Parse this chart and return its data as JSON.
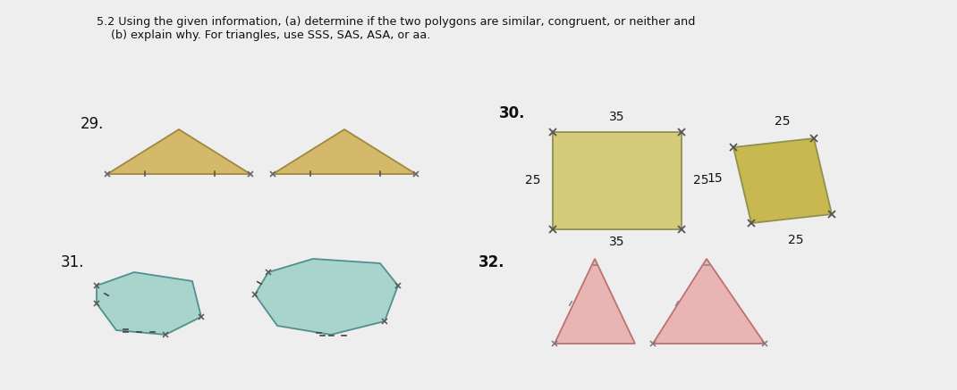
{
  "bg_color": "#d0d0d0",
  "page_color": "#eeeeee",
  "title_line1": "5.2 Using the given information, (a) determine if the two polygons are similar, congruent, or neither and",
  "title_line2": "    (b) explain why. For triangles, use SSS, SAS, ASA, or aa.",
  "label_29": "29.",
  "label_30": "30.",
  "label_31": "31.",
  "label_32": "32.",
  "tri29_fill": "#d4b96a",
  "tri29_edge": "#a08840",
  "rect30_fill": "#d4cc7a",
  "rect30_edge": "#909050",
  "rect30b_fill": "#c8b850",
  "rect30b_edge": "#909050",
  "hex31_fill": "#a8d4cc",
  "hex31_edge": "#509090",
  "tri32_fill": "#e8b4b4",
  "tri32_edge": "#c07070",
  "num30_top": "35",
  "num30_left": "25",
  "num30_right": "25",
  "num30_bot": "35",
  "num30b_top": "25",
  "num30b_left": "15",
  "num30b_bot": "25"
}
